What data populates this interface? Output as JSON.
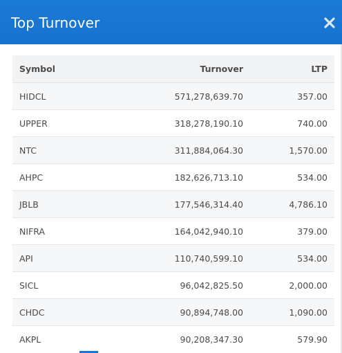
{
  "modal": {
    "title": "Top Turnover",
    "close_icon": "close-icon",
    "accent_color": "#1976d2"
  },
  "table": {
    "columns": [
      "Symbol",
      "Turnover",
      "LTP"
    ],
    "rows": [
      {
        "symbol": "HIDCL",
        "turnover": "571,278,639.70",
        "ltp": "357.00"
      },
      {
        "symbol": "UPPER",
        "turnover": "318,278,190.10",
        "ltp": "740.00"
      },
      {
        "symbol": "NTC",
        "turnover": "311,884,064.30",
        "ltp": "1,570.00"
      },
      {
        "symbol": "AHPC",
        "turnover": "182,626,713.10",
        "ltp": "534.00"
      },
      {
        "symbol": "JBLB",
        "turnover": "177,546,314.40",
        "ltp": "4,786.10"
      },
      {
        "symbol": "NIFRA",
        "turnover": "164,042,940.10",
        "ltp": "379.00"
      },
      {
        "symbol": "API",
        "turnover": "110,740,599.10",
        "ltp": "534.00"
      },
      {
        "symbol": "SICL",
        "turnover": "96,042,825.50",
        "ltp": "2,000.00"
      },
      {
        "symbol": "CHDC",
        "turnover": "90,894,748.00",
        "ltp": "1,090.00"
      },
      {
        "symbol": "AKPL",
        "turnover": "90,208,347.30",
        "ltp": "579.90"
      }
    ]
  }
}
